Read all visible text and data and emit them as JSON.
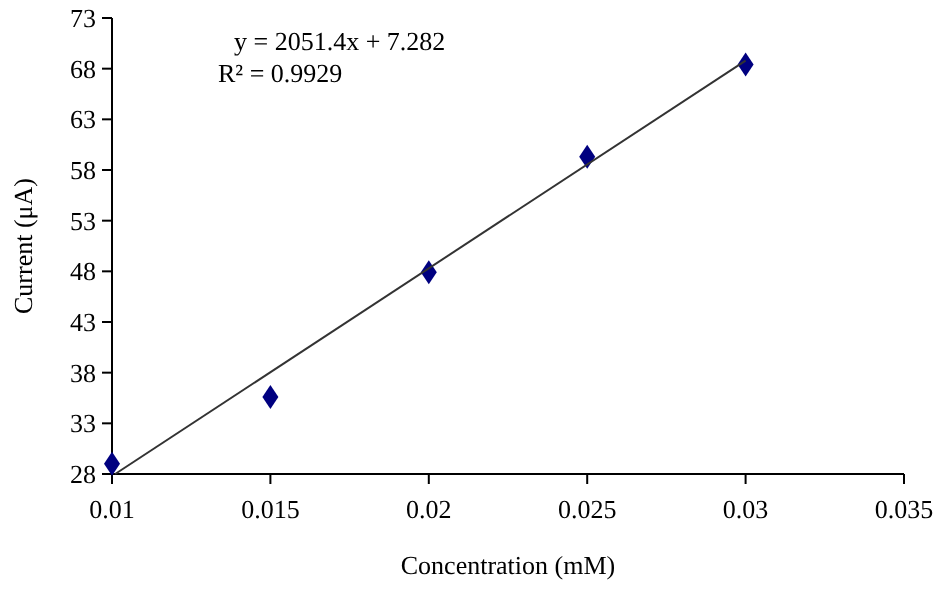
{
  "chart_data": {
    "type": "scatter",
    "xlabel": "Concentration (mM)",
    "ylabel": "Current (μA)",
    "annotations": [
      "y = 2051.4x + 7.282",
      "R² = 0.9929"
    ],
    "x": [
      0.01,
      0.015,
      0.02,
      0.025,
      0.03
    ],
    "series": [
      {
        "color": "#000080",
        "marker": "diamond",
        "values": [
          29.0,
          35.6,
          47.9,
          59.3,
          68.4
        ]
      },
      {
        "type": "line",
        "color": "#333333",
        "x": [
          0.0101,
          0.03
        ],
        "values": [
          28,
          68.8
        ]
      }
    ],
    "xlim": [
      0.01,
      0.035
    ],
    "xticks": [
      0.01,
      0.015,
      0.02,
      0.025,
      0.03,
      0.035
    ],
    "ylim": [
      28,
      73
    ],
    "yticks": [
      28,
      33,
      38,
      43,
      48,
      53,
      58,
      63,
      68,
      73
    ],
    "grid": false
  }
}
